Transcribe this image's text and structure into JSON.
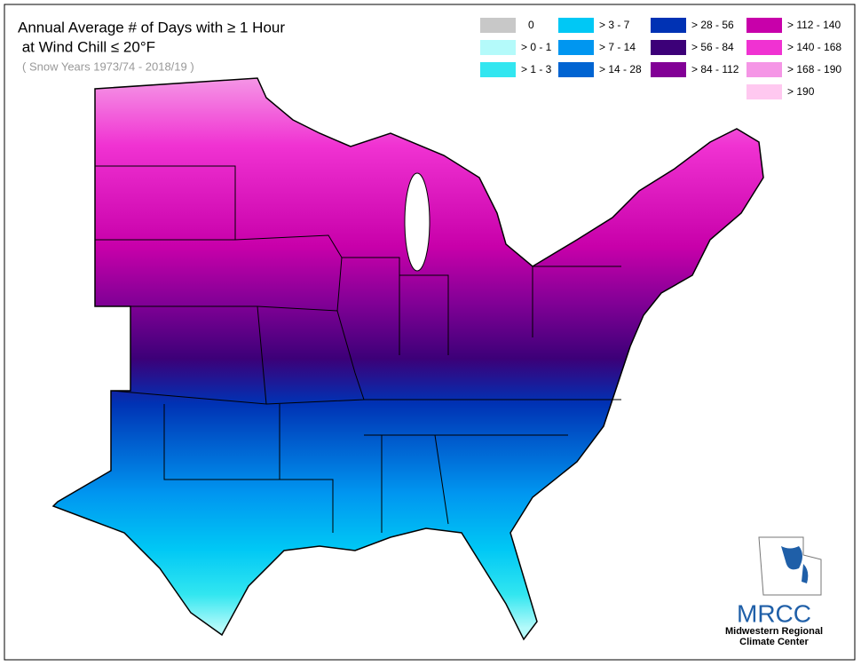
{
  "header": {
    "title_line1": "Annual Average # of Days with ≥ 1 Hour",
    "title_line2": " at Wind Chill ≤ 20°F",
    "subtitle": "( Snow Years 1973/74 - 2018/19 )"
  },
  "legend": [
    {
      "label": "0",
      "color": "#c8c8c8"
    },
    {
      "label": "> 0 - 1",
      "color": "#b4fafa"
    },
    {
      "label": "> 1 - 3",
      "color": "#32e6f0"
    },
    {
      "label": "> 3 - 7",
      "color": "#00c8f5"
    },
    {
      "label": "> 7 - 14",
      "color": "#0096f0"
    },
    {
      "label": "> 14 - 28",
      "color": "#0064d2"
    },
    {
      "label": "> 28 - 56",
      "color": "#0032b4"
    },
    {
      "label": "> 56 - 84",
      "color": "#3c0078"
    },
    {
      "label": "> 84 - 112",
      "color": "#820096"
    },
    {
      "label": "> 112 - 140",
      "color": "#c800aa"
    },
    {
      "label": "> 140 - 168",
      "color": "#f032d2"
    },
    {
      "label": "> 168 - 190",
      "color": "#f596e6"
    },
    {
      "label": "> 190",
      "color": "#ffc8f0"
    }
  ],
  "logo": {
    "acronym": "MRCC",
    "line1": "Midwestern Regional",
    "line2": "Climate Center"
  }
}
